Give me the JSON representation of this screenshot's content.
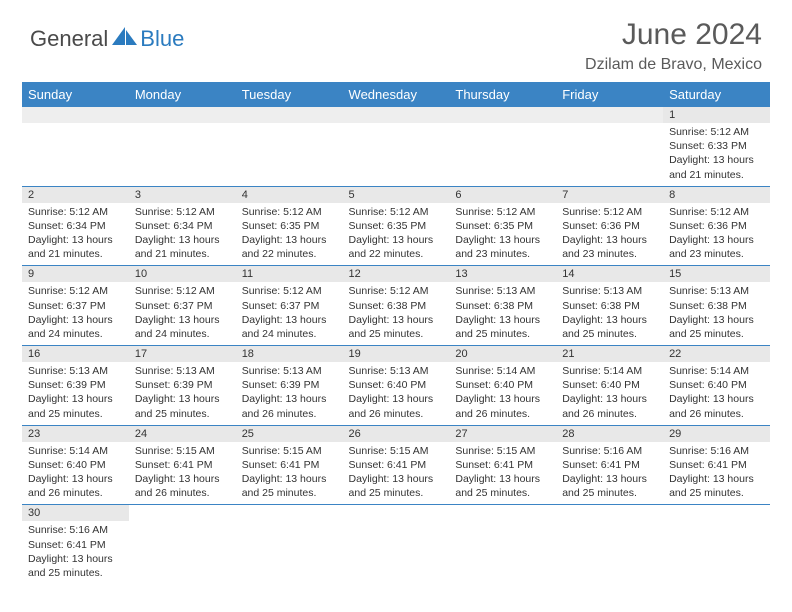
{
  "brand": {
    "general": "General",
    "blue": "Blue"
  },
  "title": "June 2024",
  "location": "Dzilam de Bravo, Mexico",
  "headers": [
    "Sunday",
    "Monday",
    "Tuesday",
    "Wednesday",
    "Thursday",
    "Friday",
    "Saturday"
  ],
  "colors": {
    "header_bg": "#3b84c4",
    "header_fg": "#ffffff",
    "daynum_bg": "#e8e8e8",
    "row_divider": "#3b84c4",
    "logo_blue": "#2b7bbf",
    "text_gray": "#5a5a5a"
  },
  "weeks": [
    [
      null,
      null,
      null,
      null,
      null,
      null,
      {
        "n": "1",
        "sr": "5:12 AM",
        "ss": "6:33 PM",
        "dl": "13 hours and 21 minutes."
      }
    ],
    [
      {
        "n": "2",
        "sr": "5:12 AM",
        "ss": "6:34 PM",
        "dl": "13 hours and 21 minutes."
      },
      {
        "n": "3",
        "sr": "5:12 AM",
        "ss": "6:34 PM",
        "dl": "13 hours and 21 minutes."
      },
      {
        "n": "4",
        "sr": "5:12 AM",
        "ss": "6:35 PM",
        "dl": "13 hours and 22 minutes."
      },
      {
        "n": "5",
        "sr": "5:12 AM",
        "ss": "6:35 PM",
        "dl": "13 hours and 22 minutes."
      },
      {
        "n": "6",
        "sr": "5:12 AM",
        "ss": "6:35 PM",
        "dl": "13 hours and 23 minutes."
      },
      {
        "n": "7",
        "sr": "5:12 AM",
        "ss": "6:36 PM",
        "dl": "13 hours and 23 minutes."
      },
      {
        "n": "8",
        "sr": "5:12 AM",
        "ss": "6:36 PM",
        "dl": "13 hours and 23 minutes."
      }
    ],
    [
      {
        "n": "9",
        "sr": "5:12 AM",
        "ss": "6:37 PM",
        "dl": "13 hours and 24 minutes."
      },
      {
        "n": "10",
        "sr": "5:12 AM",
        "ss": "6:37 PM",
        "dl": "13 hours and 24 minutes."
      },
      {
        "n": "11",
        "sr": "5:12 AM",
        "ss": "6:37 PM",
        "dl": "13 hours and 24 minutes."
      },
      {
        "n": "12",
        "sr": "5:12 AM",
        "ss": "6:38 PM",
        "dl": "13 hours and 25 minutes."
      },
      {
        "n": "13",
        "sr": "5:13 AM",
        "ss": "6:38 PM",
        "dl": "13 hours and 25 minutes."
      },
      {
        "n": "14",
        "sr": "5:13 AM",
        "ss": "6:38 PM",
        "dl": "13 hours and 25 minutes."
      },
      {
        "n": "15",
        "sr": "5:13 AM",
        "ss": "6:38 PM",
        "dl": "13 hours and 25 minutes."
      }
    ],
    [
      {
        "n": "16",
        "sr": "5:13 AM",
        "ss": "6:39 PM",
        "dl": "13 hours and 25 minutes."
      },
      {
        "n": "17",
        "sr": "5:13 AM",
        "ss": "6:39 PM",
        "dl": "13 hours and 25 minutes."
      },
      {
        "n": "18",
        "sr": "5:13 AM",
        "ss": "6:39 PM",
        "dl": "13 hours and 26 minutes."
      },
      {
        "n": "19",
        "sr": "5:13 AM",
        "ss": "6:40 PM",
        "dl": "13 hours and 26 minutes."
      },
      {
        "n": "20",
        "sr": "5:14 AM",
        "ss": "6:40 PM",
        "dl": "13 hours and 26 minutes."
      },
      {
        "n": "21",
        "sr": "5:14 AM",
        "ss": "6:40 PM",
        "dl": "13 hours and 26 minutes."
      },
      {
        "n": "22",
        "sr": "5:14 AM",
        "ss": "6:40 PM",
        "dl": "13 hours and 26 minutes."
      }
    ],
    [
      {
        "n": "23",
        "sr": "5:14 AM",
        "ss": "6:40 PM",
        "dl": "13 hours and 26 minutes."
      },
      {
        "n": "24",
        "sr": "5:15 AM",
        "ss": "6:41 PM",
        "dl": "13 hours and 26 minutes."
      },
      {
        "n": "25",
        "sr": "5:15 AM",
        "ss": "6:41 PM",
        "dl": "13 hours and 25 minutes."
      },
      {
        "n": "26",
        "sr": "5:15 AM",
        "ss": "6:41 PM",
        "dl": "13 hours and 25 minutes."
      },
      {
        "n": "27",
        "sr": "5:15 AM",
        "ss": "6:41 PM",
        "dl": "13 hours and 25 minutes."
      },
      {
        "n": "28",
        "sr": "5:16 AM",
        "ss": "6:41 PM",
        "dl": "13 hours and 25 minutes."
      },
      {
        "n": "29",
        "sr": "5:16 AM",
        "ss": "6:41 PM",
        "dl": "13 hours and 25 minutes."
      }
    ],
    [
      {
        "n": "30",
        "sr": "5:16 AM",
        "ss": "6:41 PM",
        "dl": "13 hours and 25 minutes."
      },
      null,
      null,
      null,
      null,
      null,
      null
    ]
  ],
  "labels": {
    "sunrise": "Sunrise: ",
    "sunset": "Sunset: ",
    "daylight": "Daylight: "
  }
}
